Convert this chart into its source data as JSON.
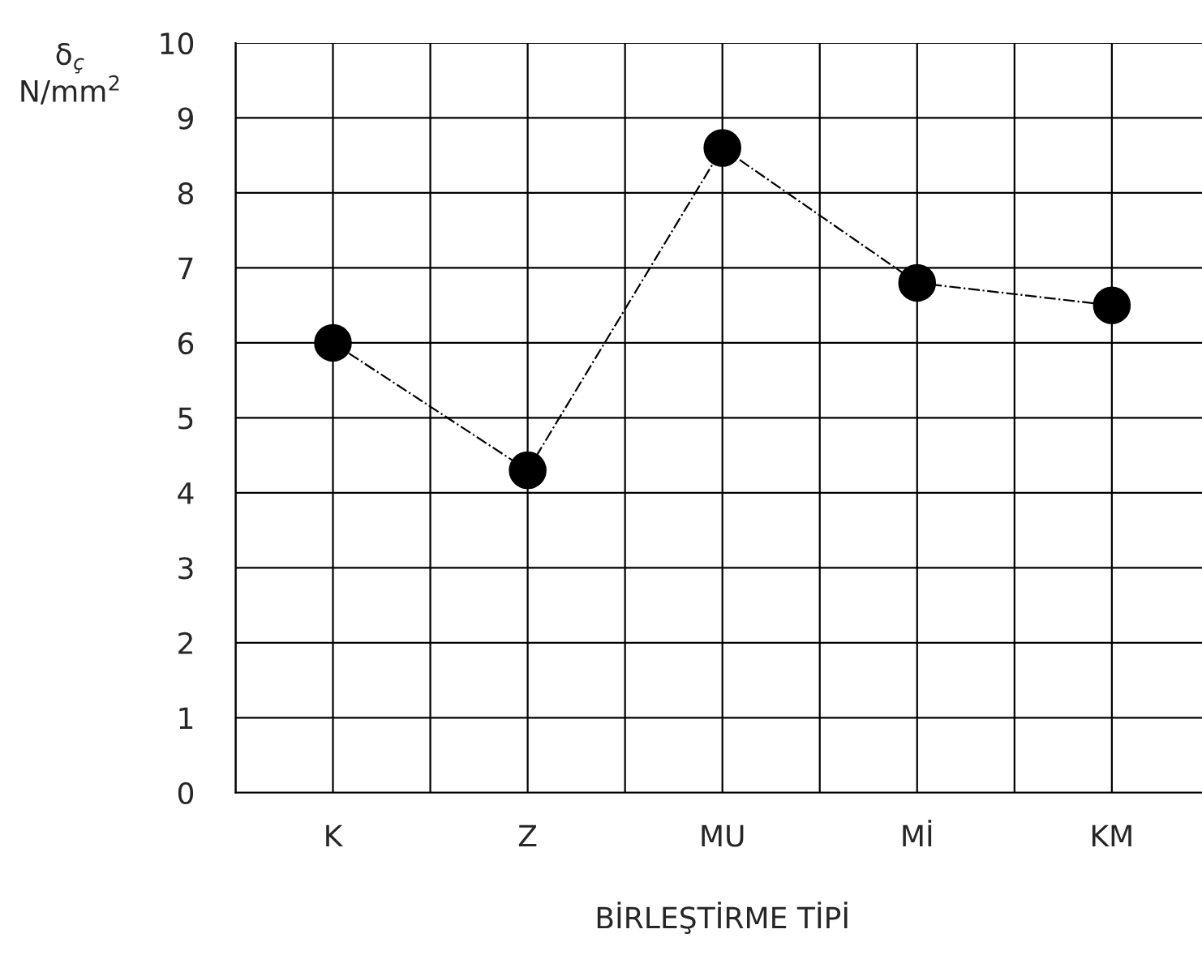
{
  "chart_data": {
    "type": "line",
    "xlabel": "BİRLEŞTİRME TİPİ",
    "ylabel": "δ$_{ç}$\nN/mm$^{2}$",
    "categories": [
      "K",
      "Z",
      "MU",
      "Mİ",
      "KM"
    ],
    "series": [
      {
        "color": "#000000",
        "values": [
          6.0,
          4.3,
          8.6,
          6.8,
          6.5
        ]
      }
    ],
    "ylim": [
      0,
      10
    ],
    "yticks": [
      0,
      1,
      2,
      3,
      4,
      5,
      6,
      7,
      8,
      9,
      10
    ],
    "grid": true,
    "marker": "circle",
    "line_style": "dashed"
  }
}
